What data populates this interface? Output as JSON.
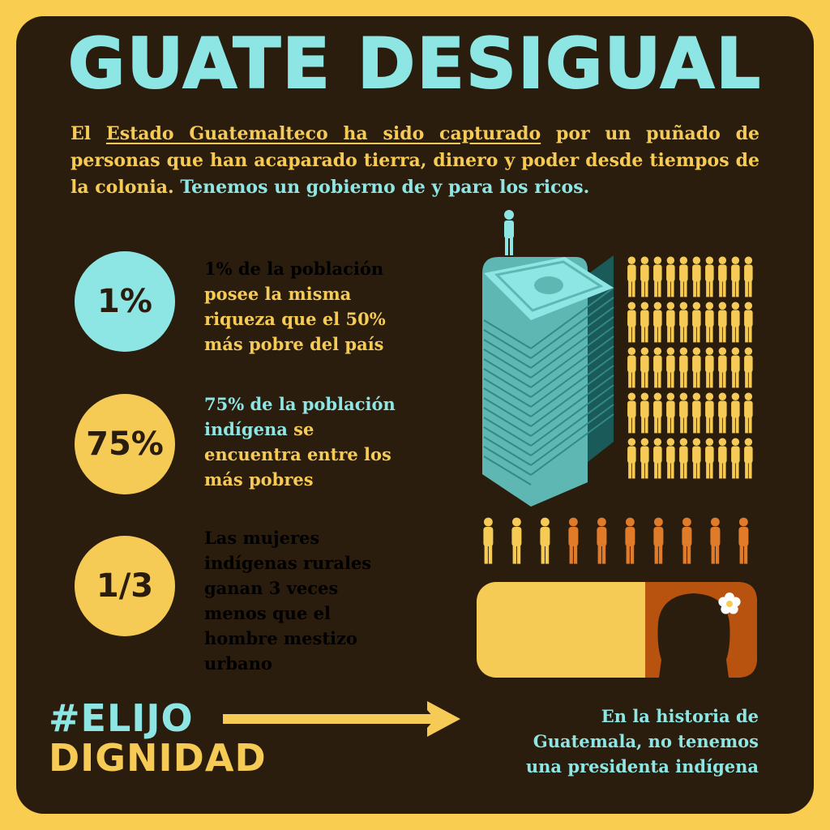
{
  "title": "GUATE DESIGUAL",
  "intro": {
    "part1": "El ",
    "link": "Estado Guatemalteco ha sido capturado",
    "part2": " por un puñado de personas que han acaparado tierra, dinero y poder desde tiempos de la colonia. ",
    "highlight": "Tenemos un gobierno de y para los ricos."
  },
  "stats": [
    {
      "figure": "1%",
      "lines": [
        "1% de la población",
        "posee la misma",
        "riqueza que el 50%",
        "más pobre del país"
      ]
    },
    {
      "figure": "75%",
      "lines": [
        "75% de la población",
        "indígena",
        "se",
        "encuentra entre los",
        "más pobres"
      ]
    },
    {
      "figure": "1/3",
      "lines": [
        "Las mujeres",
        "indígenas rurales",
        "ganan 3 veces",
        "menos que el",
        "hombre mestizo",
        "urbano"
      ]
    }
  ],
  "hashtag": {
    "line1": "#ELIJO",
    "line2": "DIGNIDAD"
  },
  "footnote": [
    "En la historia de",
    "Guatemala, no tenemos",
    "una presidenta indígena"
  ],
  "colors": {
    "background": "#2a1d0e",
    "border": "#f9cd4f",
    "cyan": "#8ee6e4",
    "yellow": "#f6cb55",
    "orange": "#e07b2a",
    "rust": "#b8530f"
  },
  "icons": [
    "person-icon",
    "money-stack-icon",
    "flower-icon",
    "arrow-right-icon",
    "woman-silhouette-icon"
  ]
}
